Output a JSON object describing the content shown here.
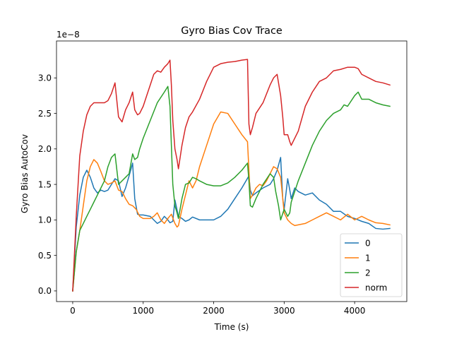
{
  "chart_data": {
    "type": "line",
    "title": "Gyro Bias Cov Trace",
    "xlabel": "Time (s)",
    "ylabel": "Gyro Bias AutoCov",
    "y_offset_label": "1e−8",
    "xlim": [
      -230,
      4740
    ],
    "ylim": [
      -0.15,
      3.52
    ],
    "x_ticks": [
      0,
      1000,
      2000,
      3000,
      4000
    ],
    "x_tick_labels": [
      "0",
      "1000",
      "2000",
      "3000",
      "4000"
    ],
    "y_ticks": [
      0.0,
      0.5,
      1.0,
      1.5,
      2.0,
      2.5,
      3.0
    ],
    "y_tick_labels": [
      "0.0",
      "0.5",
      "1.0",
      "1.5",
      "2.0",
      "2.5",
      "3.0"
    ],
    "grid": false,
    "legend_position": "lower-right",
    "series": [
      {
        "name": "0",
        "color": "#1f77b4",
        "x": [
          0,
          50,
          100,
          150,
          200,
          250,
          300,
          350,
          400,
          450,
          500,
          550,
          600,
          650,
          700,
          750,
          800,
          850,
          880,
          920,
          950,
          1000,
          1100,
          1150,
          1200,
          1250,
          1300,
          1350,
          1380,
          1420,
          1450,
          1500,
          1550,
          1600,
          1650,
          1700,
          1800,
          1900,
          2000,
          2100,
          2200,
          2300,
          2400,
          2500,
          2520,
          2550,
          2600,
          2700,
          2800,
          2850,
          2900,
          2950,
          2980,
          3000,
          3050,
          3080,
          3100,
          3150,
          3200,
          3300,
          3400,
          3500,
          3600,
          3700,
          3800,
          3900,
          4000,
          4100,
          4200,
          4300,
          4400,
          4500
        ],
        "y": [
          0.0,
          0.9,
          1.35,
          1.6,
          1.7,
          1.6,
          1.45,
          1.38,
          1.42,
          1.4,
          1.42,
          1.5,
          1.58,
          1.55,
          1.33,
          1.45,
          1.62,
          1.8,
          1.3,
          1.08,
          1.07,
          1.07,
          1.05,
          1.0,
          0.95,
          0.98,
          1.05,
          1.0,
          0.96,
          0.98,
          1.28,
          1.05,
          1.02,
          0.98,
          1.0,
          1.04,
          1.0,
          1.0,
          1.0,
          1.05,
          1.15,
          1.3,
          1.45,
          1.62,
          1.42,
          1.34,
          1.38,
          1.45,
          1.5,
          1.58,
          1.7,
          1.88,
          1.3,
          1.15,
          1.58,
          1.42,
          1.3,
          1.45,
          1.4,
          1.35,
          1.38,
          1.28,
          1.22,
          1.12,
          1.12,
          1.05,
          1.02,
          0.98,
          0.95,
          0.88,
          0.87,
          0.88
        ]
      },
      {
        "name": "1",
        "color": "#ff7f0e",
        "x": [
          0,
          50,
          100,
          150,
          200,
          250,
          300,
          350,
          400,
          450,
          500,
          550,
          600,
          650,
          700,
          750,
          800,
          850,
          900,
          950,
          1000,
          1100,
          1150,
          1200,
          1250,
          1300,
          1350,
          1400,
          1450,
          1480,
          1500,
          1550,
          1600,
          1650,
          1700,
          1750,
          1800,
          1900,
          2000,
          2100,
          2200,
          2300,
          2400,
          2480,
          2500,
          2520,
          2550,
          2600,
          2650,
          2700,
          2750,
          2800,
          2850,
          2900,
          2950,
          3000,
          3050,
          3100,
          3150,
          3200,
          3300,
          3400,
          3500,
          3600,
          3700,
          3800,
          3900,
          4000,
          4100,
          4200,
          4300,
          4400,
          4500
        ],
        "y": [
          0.0,
          0.55,
          0.85,
          1.2,
          1.55,
          1.75,
          1.85,
          1.8,
          1.68,
          1.55,
          1.5,
          1.52,
          1.55,
          1.42,
          1.4,
          1.3,
          1.22,
          1.2,
          1.15,
          1.05,
          1.02,
          1.02,
          1.05,
          1.1,
          1.0,
          0.95,
          1.02,
          1.08,
          0.95,
          0.9,
          0.92,
          1.15,
          1.35,
          1.55,
          1.45,
          1.55,
          1.75,
          2.05,
          2.35,
          2.52,
          2.5,
          2.35,
          2.2,
          2.1,
          1.7,
          1.3,
          1.35,
          1.45,
          1.5,
          1.48,
          1.55,
          1.65,
          1.75,
          1.72,
          1.6,
          1.1,
          1.0,
          0.95,
          0.92,
          0.93,
          0.95,
          1.0,
          1.05,
          1.1,
          1.05,
          1.0,
          1.08,
          1.0,
          1.05,
          1.0,
          0.96,
          0.95,
          0.93
        ]
      },
      {
        "name": "2",
        "color": "#2ca02c",
        "x": [
          0,
          50,
          100,
          150,
          200,
          250,
          300,
          350,
          400,
          450,
          500,
          550,
          600,
          650,
          700,
          750,
          800,
          850,
          880,
          920,
          950,
          1000,
          1100,
          1200,
          1300,
          1350,
          1380,
          1400,
          1420,
          1450,
          1480,
          1500,
          1550,
          1600,
          1650,
          1700,
          1750,
          1800,
          1900,
          2000,
          2100,
          2200,
          2300,
          2400,
          2480,
          2500,
          2520,
          2550,
          2600,
          2700,
          2800,
          2850,
          2880,
          2920,
          2950,
          3000,
          3050,
          3080,
          3100,
          3200,
          3300,
          3400,
          3500,
          3600,
          3700,
          3800,
          3850,
          3900,
          4000,
          4050,
          4100,
          4200,
          4300,
          4400,
          4500
        ],
        "y": [
          0.0,
          0.55,
          0.85,
          0.95,
          1.05,
          1.15,
          1.25,
          1.35,
          1.45,
          1.55,
          1.75,
          1.88,
          1.93,
          1.5,
          1.55,
          1.6,
          1.65,
          1.93,
          1.85,
          1.88,
          2.0,
          2.15,
          2.4,
          2.65,
          2.8,
          2.88,
          2.6,
          2.05,
          1.5,
          1.2,
          1.1,
          1.02,
          1.3,
          1.5,
          1.52,
          1.6,
          1.58,
          1.55,
          1.5,
          1.48,
          1.48,
          1.52,
          1.6,
          1.7,
          1.8,
          1.55,
          1.2,
          1.18,
          1.3,
          1.5,
          1.65,
          1.6,
          1.4,
          1.2,
          1.0,
          1.15,
          1.05,
          1.1,
          1.25,
          1.55,
          1.8,
          2.05,
          2.25,
          2.4,
          2.5,
          2.55,
          2.62,
          2.6,
          2.75,
          2.8,
          2.7,
          2.7,
          2.65,
          2.62,
          2.6
        ]
      },
      {
        "name": "norm",
        "color": "#d62728",
        "x": [
          0,
          50,
          100,
          150,
          200,
          250,
          300,
          350,
          400,
          450,
          500,
          550,
          600,
          650,
          700,
          750,
          800,
          850,
          880,
          920,
          950,
          1000,
          1050,
          1100,
          1150,
          1200,
          1250,
          1300,
          1350,
          1380,
          1400,
          1420,
          1450,
          1480,
          1500,
          1550,
          1600,
          1650,
          1700,
          1800,
          1900,
          2000,
          2100,
          2200,
          2300,
          2400,
          2480,
          2500,
          2520,
          2550,
          2600,
          2700,
          2800,
          2850,
          2900,
          2950,
          2980,
          3000,
          3050,
          3080,
          3100,
          3200,
          3300,
          3400,
          3500,
          3600,
          3700,
          3800,
          3900,
          4000,
          4050,
          4100,
          4200,
          4300,
          4400,
          4500
        ],
        "y": [
          0.0,
          1.05,
          1.9,
          2.25,
          2.48,
          2.6,
          2.65,
          2.65,
          2.65,
          2.65,
          2.68,
          2.78,
          2.93,
          2.45,
          2.38,
          2.55,
          2.65,
          2.8,
          2.55,
          2.48,
          2.5,
          2.6,
          2.75,
          2.9,
          3.05,
          3.1,
          3.08,
          3.15,
          3.2,
          3.25,
          2.9,
          2.4,
          2.0,
          1.85,
          1.72,
          2.05,
          2.3,
          2.45,
          2.52,
          2.7,
          2.95,
          3.15,
          3.2,
          3.22,
          3.23,
          3.25,
          3.26,
          2.35,
          2.2,
          2.3,
          2.5,
          2.65,
          2.9,
          3.0,
          3.05,
          2.75,
          2.45,
          2.2,
          2.2,
          2.1,
          2.05,
          2.25,
          2.6,
          2.8,
          2.95,
          3.0,
          3.1,
          3.12,
          3.15,
          3.15,
          3.13,
          3.05,
          3.0,
          2.95,
          2.93,
          2.9
        ]
      }
    ]
  }
}
